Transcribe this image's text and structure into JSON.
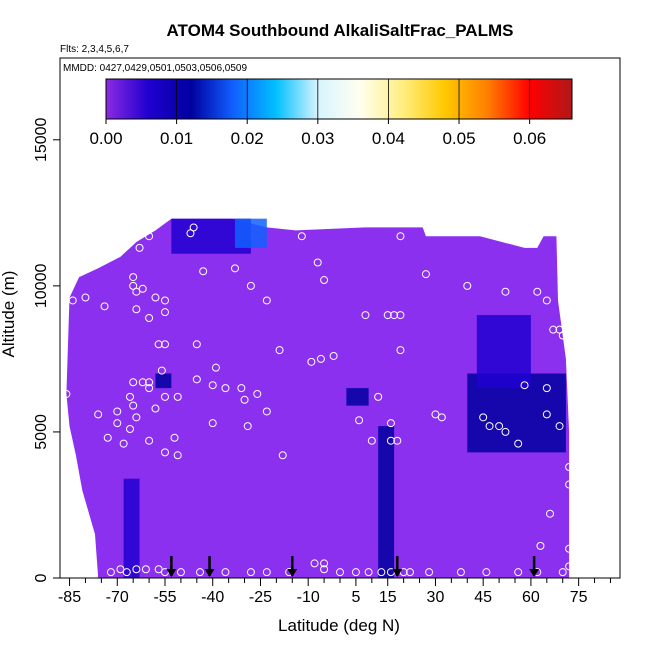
{
  "title": "ATOM4 Southbound AlkaliSaltFrac_PALMS",
  "flights_note": "Flts: 2,3,4,5,6,7",
  "dates_note": "MMDD: 0427,0429,0501,0503,0506,0509",
  "colors": {
    "background_fill": "#8c30f0",
    "axis": "#000000",
    "marker": "#ffffff",
    "colormap": [
      "#8a2be2",
      "#2000d0",
      "#0000a0",
      "#1060ff",
      "#00bfff",
      "#d8f4ff",
      "#fffff0",
      "#ffee80",
      "#ffc800",
      "#ff8000",
      "#ff0000",
      "#b01818"
    ]
  },
  "chart_data": {
    "type": "heatmap",
    "title": "ATOM4 Southbound AlkaliSaltFrac_PALMS",
    "xlabel": "Latitude (deg N)",
    "ylabel": "Altitude (m)",
    "xlim": [
      -88,
      88
    ],
    "ylim": [
      0,
      17800
    ],
    "x_ticks": [
      -85,
      -70,
      -55,
      -40,
      -25,
      -10,
      5,
      15,
      30,
      45,
      60,
      75
    ],
    "x_minor_ticks": [
      -80,
      -75,
      -65,
      -60,
      -50,
      -45,
      -35,
      -30,
      -20,
      -15,
      -5,
      0,
      10,
      20,
      25,
      35,
      40,
      50,
      55,
      65,
      70,
      80,
      85
    ],
    "y_ticks": [
      0,
      5000,
      10000,
      15000
    ],
    "colorbar": {
      "range": [
        0,
        0.066
      ],
      "ticks": [
        0.0,
        0.01,
        0.02,
        0.03,
        0.04,
        0.05,
        0.06
      ],
      "tick_labels": [
        "0.00",
        "0.01",
        "0.02",
        "0.03",
        "0.04",
        "0.05",
        "0.06"
      ]
    },
    "base_value": 0.0,
    "domain_outline": [
      [
        -86,
        6300
      ],
      [
        -85,
        9600
      ],
      [
        -82,
        10300
      ],
      [
        -76,
        10600
      ],
      [
        -69,
        11000
      ],
      [
        -64,
        11500
      ],
      [
        -58,
        11900
      ],
      [
        -53,
        12300
      ],
      [
        -34,
        12300
      ],
      [
        -23,
        12000
      ],
      [
        -14,
        11900
      ],
      [
        8,
        12000
      ],
      [
        26,
        12000
      ],
      [
        27,
        11700
      ],
      [
        44,
        11700
      ],
      [
        58,
        11300
      ],
      [
        62,
        11300
      ],
      [
        64,
        11700
      ],
      [
        68,
        11700
      ],
      [
        68.5,
        9500
      ],
      [
        71,
        7500
      ],
      [
        72,
        5000
      ],
      [
        72,
        0
      ],
      [
        -76,
        0
      ],
      [
        -77,
        1500
      ],
      [
        -81,
        3000
      ],
      [
        -83,
        4200
      ],
      [
        -85,
        5200
      ]
    ],
    "anomaly_regions": [
      {
        "lat": [
          -53,
          -28
        ],
        "alt": [
          11100,
          12300
        ],
        "value": 0.008
      },
      {
        "lat": [
          -33,
          -23
        ],
        "alt": [
          11300,
          12300
        ],
        "value": 0.016
      },
      {
        "lat": [
          -58,
          -53
        ],
        "alt": [
          6500,
          7000
        ],
        "value": 0.012
      },
      {
        "lat": [
          40,
          71
        ],
        "alt": [
          4300,
          7000
        ],
        "value": 0.012
      },
      {
        "lat": [
          43,
          60
        ],
        "alt": [
          6500,
          9000
        ],
        "value": 0.008
      },
      {
        "lat": [
          2,
          9
        ],
        "alt": [
          5900,
          6500
        ],
        "value": 0.01
      },
      {
        "lat": [
          12,
          17
        ],
        "alt": [
          0,
          5200
        ],
        "value": 0.009
      },
      {
        "lat": [
          -68,
          -63
        ],
        "alt": [
          0,
          3400
        ],
        "value": 0.007
      }
    ],
    "sample_points": [
      [
        -86,
        6300
      ],
      [
        -84,
        9500
      ],
      [
        -80,
        9600
      ],
      [
        -74,
        9300
      ],
      [
        -65,
        10300
      ],
      [
        -65,
        10000
      ],
      [
        -64,
        9800
      ],
      [
        -62,
        9900
      ],
      [
        -64,
        9200
      ],
      [
        -58,
        9600
      ],
      [
        -55,
        9500
      ],
      [
        -55,
        9100
      ],
      [
        -60,
        8900
      ],
      [
        -57,
        8000
      ],
      [
        -55,
        8000
      ],
      [
        -63,
        11300
      ],
      [
        -68,
        11700
      ],
      [
        -60,
        11700
      ],
      [
        -47,
        11800
      ],
      [
        -46,
        12000
      ],
      [
        -20,
        12300
      ],
      [
        -18,
        12300
      ],
      [
        -12,
        11700
      ],
      [
        -7,
        10800
      ],
      [
        -43,
        10500
      ],
      [
        -33,
        10600
      ],
      [
        -28,
        10000
      ],
      [
        -23,
        9500
      ],
      [
        -5,
        10200
      ],
      [
        19,
        11700
      ],
      [
        27,
        10400
      ],
      [
        40,
        10000
      ],
      [
        52,
        9800
      ],
      [
        62,
        9800
      ],
      [
        65,
        9500
      ],
      [
        67,
        8500
      ],
      [
        69,
        8500
      ],
      [
        70,
        8300
      ],
      [
        15,
        9000
      ],
      [
        17,
        9000
      ],
      [
        19,
        9000
      ],
      [
        19,
        7800
      ],
      [
        8,
        9000
      ],
      [
        -9,
        7400
      ],
      [
        -6,
        7500
      ],
      [
        -2,
        7600
      ],
      [
        -19,
        7800
      ],
      [
        -45,
        8000
      ],
      [
        -39,
        7200
      ],
      [
        -45,
        6800
      ],
      [
        -40,
        6600
      ],
      [
        -36,
        6500
      ],
      [
        -31,
        6500
      ],
      [
        -26,
        6300
      ],
      [
        -23,
        5700
      ],
      [
        -29,
        5200
      ],
      [
        -30,
        6100
      ],
      [
        -40,
        5300
      ],
      [
        -51,
        6200
      ],
      [
        -55,
        6200
      ],
      [
        -58,
        5800
      ],
      [
        -62,
        6700
      ],
      [
        -65,
        6700
      ],
      [
        -60,
        6700
      ],
      [
        -56,
        7100
      ],
      [
        -60,
        6500
      ],
      [
        -70,
        5300
      ],
      [
        -66,
        5100
      ],
      [
        -66,
        6200
      ],
      [
        -70,
        5700
      ],
      [
        -65,
        5900
      ],
      [
        -64,
        5500
      ],
      [
        -73,
        4800
      ],
      [
        -68,
        4600
      ],
      [
        -76,
        5600
      ],
      [
        -60,
        4700
      ],
      [
        -52,
        4800
      ],
      [
        -51,
        4200
      ],
      [
        -55,
        4300
      ],
      [
        -18,
        4200
      ],
      [
        6,
        5400
      ],
      [
        12,
        6200
      ],
      [
        16,
        5300
      ],
      [
        18,
        4700
      ],
      [
        16,
        4700
      ],
      [
        10,
        4700
      ],
      [
        30,
        5600
      ],
      [
        32,
        5500
      ],
      [
        45,
        5500
      ],
      [
        47,
        5200
      ],
      [
        50,
        5200
      ],
      [
        52,
        5000
      ],
      [
        56,
        4600
      ],
      [
        58,
        6600
      ],
      [
        65,
        6500
      ],
      [
        69,
        5200
      ],
      [
        72,
        3800
      ],
      [
        72,
        3200
      ],
      [
        65,
        5600
      ],
      [
        66,
        2200
      ],
      [
        63,
        1100
      ],
      [
        -8,
        500
      ],
      [
        -5,
        500
      ],
      [
        -5,
        300
      ],
      [
        0,
        200
      ],
      [
        5,
        200
      ],
      [
        9,
        200
      ],
      [
        13,
        200
      ],
      [
        20,
        200
      ],
      [
        16,
        200
      ],
      [
        22,
        200
      ],
      [
        28,
        200
      ],
      [
        38,
        200
      ],
      [
        46,
        200
      ],
      [
        56,
        200
      ],
      [
        62,
        200
      ],
      [
        70,
        200
      ],
      [
        72,
        400
      ],
      [
        -57,
        300
      ],
      [
        -55,
        200
      ],
      [
        -64,
        300
      ],
      [
        -67,
        200
      ],
      [
        -72,
        200
      ],
      [
        -69,
        300
      ],
      [
        -61,
        300
      ],
      [
        -50,
        200
      ],
      [
        -44,
        200
      ],
      [
        -36,
        200
      ],
      [
        -28,
        200
      ],
      [
        -23,
        200
      ],
      [
        -16,
        200
      ],
      [
        72,
        1000
      ]
    ],
    "arrow_latitudes": [
      -53,
      -41,
      -15,
      18,
      61
    ]
  }
}
